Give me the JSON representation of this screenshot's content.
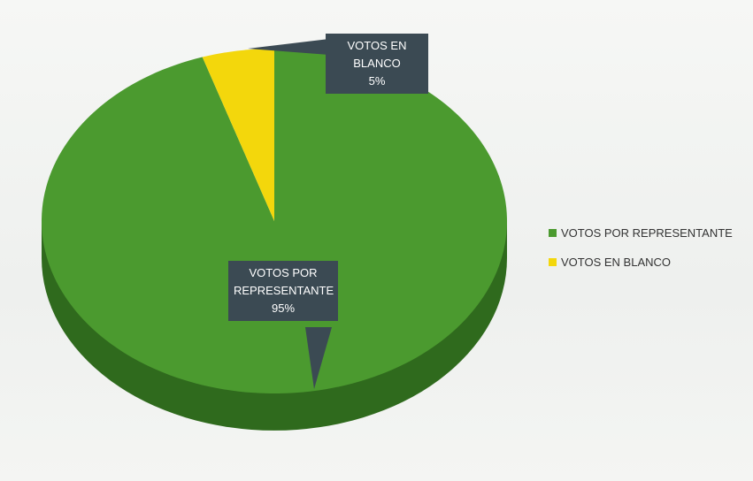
{
  "chart_data": {
    "type": "pie",
    "categories": [
      "VOTOS POR REPRESENTANTE",
      "VOTOS EN BLANCO"
    ],
    "values": [
      95,
      5
    ],
    "value_labels": [
      "95%",
      "5%"
    ],
    "colors": [
      "#4b9a2f",
      "#f3d70c"
    ],
    "legend": "right"
  }
}
